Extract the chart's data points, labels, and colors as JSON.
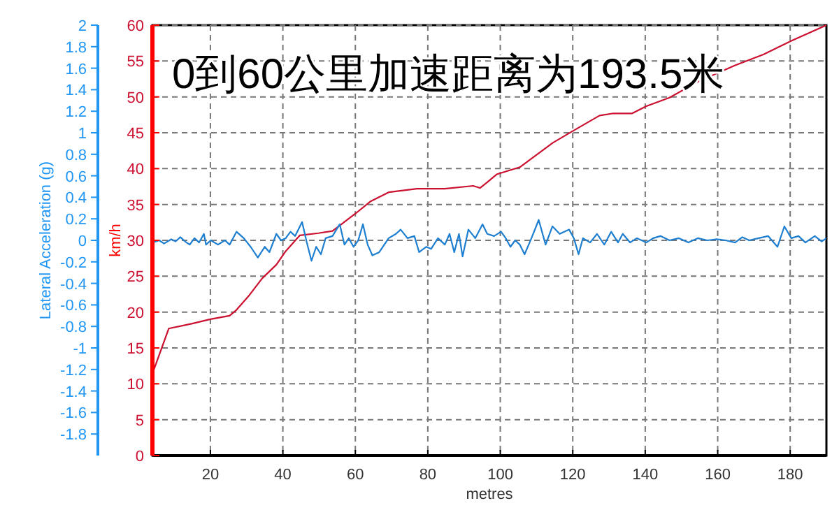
{
  "chart_data": {
    "type": "line",
    "title": "0到60公里加速距离为193.5米",
    "xlabel": "metres",
    "ylabel": "km/h",
    "y2label": "Lateral Acceleration (g)",
    "xlim": [
      4,
      190
    ],
    "xticks": [
      20,
      40,
      60,
      80,
      100,
      120,
      140,
      160,
      180
    ],
    "ylim": [
      0,
      60
    ],
    "yticks": [
      0,
      5,
      10,
      15,
      20,
      25,
      30,
      35,
      40,
      45,
      50,
      55,
      60
    ],
    "y2lim": [
      -2,
      2
    ],
    "y2ticks": [
      2,
      1.8,
      1.6,
      1.4,
      1.2,
      1,
      0.8,
      0.6,
      0.4,
      0.2,
      0,
      -0.2,
      -0.4,
      -0.6,
      -0.8,
      -1,
      -1.2,
      -1.4,
      -1.6,
      -1.8
    ],
    "grid": true,
    "series": [
      {
        "color": "#cc1030",
        "x": [
          4,
          8.5,
          15,
          20,
          25.3,
          27.2,
          30.5,
          34.3,
          38.2,
          40.8,
          44.7,
          49.8,
          53.7,
          56.3,
          60.2,
          64.1,
          69.2,
          77,
          84.7,
          92.5,
          94.4,
          96.4,
          99,
          105.4,
          114.5,
          120.9,
          127.4,
          131.2,
          136.4,
          140.3,
          146.7,
          154.5,
          164.8,
          172.6,
          180.3,
          190
        ],
        "values": [
          11.4,
          17.7,
          18.4,
          19,
          19.5,
          20.3,
          22.2,
          24.7,
          26.6,
          28.5,
          30.7,
          31,
          31.3,
          32.3,
          33.8,
          35.4,
          36.7,
          37.2,
          37.2,
          37.6,
          37.3,
          38.1,
          39.2,
          40.2,
          43.6,
          45.5,
          47.4,
          47.7,
          47.7,
          48.7,
          49.9,
          52.1,
          54.4,
          55.9,
          57.8,
          60
        ]
      },
      {
        "color": "#1e7fd0",
        "axis": "y2",
        "x": [
          4,
          5.9,
          7.2,
          9.2,
          10.4,
          11.7,
          13,
          14.3,
          15.6,
          16.9,
          18.2,
          18.8,
          20.1,
          22.1,
          24,
          25.3,
          27.2,
          29.2,
          31.1,
          33.1,
          35,
          36.3,
          38.2,
          39.5,
          40.8,
          42.1,
          43.4,
          45.3,
          46.6,
          47.9,
          49.2,
          50.5,
          51.8,
          53.7,
          55.7,
          57,
          58.2,
          59.5,
          60.8,
          62.1,
          63.4,
          64.7,
          66.6,
          69.2,
          71.2,
          72.5,
          74.4,
          76.3,
          77.6,
          79.6,
          80.9,
          82.8,
          84.7,
          86,
          87.3,
          88.6,
          89.6,
          91.2,
          93.1,
          95.1,
          96.4,
          98.3,
          100.2,
          101.5,
          102.8,
          104.1,
          105.4,
          106.7,
          108.6,
          110.6,
          112.5,
          114.4,
          116.4,
          119,
          120.3,
          121.6,
          122.8,
          124.8,
          126.7,
          128.7,
          130.6,
          132.5,
          133.8,
          135.8,
          137.7,
          140.3,
          142.2,
          144.2,
          146.7,
          149.3,
          151.9,
          154.5,
          157.1,
          159.7,
          162.2,
          164.8,
          166.8,
          168.7,
          171.3,
          173.9,
          176.5,
          178.4,
          180.3,
          182.3,
          184.2,
          186.8,
          188.7,
          190
        ],
        "values": [
          -0.02,
          0,
          -0.03,
          0.01,
          -0.01,
          0.03,
          -0.01,
          -0.04,
          0.02,
          -0.02,
          0.06,
          -0.04,
          0,
          -0.04,
          0,
          -0.04,
          0.08,
          0.02,
          -0.06,
          -0.16,
          -0.06,
          -0.11,
          0.06,
          0,
          0.02,
          0.08,
          0.04,
          0.17,
          -0.02,
          -0.19,
          -0.06,
          -0.13,
          0.02,
          0.04,
          0.15,
          -0.04,
          0.02,
          -0.06,
          0,
          0.15,
          -0.04,
          -0.14,
          -0.11,
          0.02,
          0.06,
          0.1,
          0.02,
          0.04,
          -0.11,
          -0.06,
          -0.08,
          0.02,
          -0.04,
          0.06,
          -0.11,
          0.06,
          -0.15,
          0.1,
          0.02,
          0.15,
          0.06,
          0.04,
          0.08,
          0.02,
          -0.06,
          0,
          -0.04,
          -0.13,
          0.02,
          0.19,
          -0.04,
          0.13,
          0.06,
          0.1,
          0.02,
          -0.13,
          0.02,
          -0.02,
          0.06,
          -0.04,
          0.08,
          -0.02,
          0.06,
          -0.02,
          0.02,
          -0.02,
          0.02,
          0.04,
          0,
          0.02,
          -0.02,
          0.02,
          0,
          0.01,
          0,
          -0.02,
          0.03,
          0,
          0.02,
          0.04,
          -0.06,
          0.13,
          0.02,
          0.04,
          -0.02,
          0.04,
          -0.01,
          0.02
        ]
      }
    ]
  }
}
